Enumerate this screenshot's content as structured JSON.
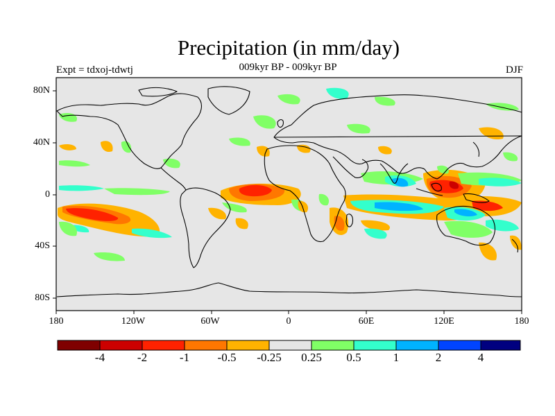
{
  "title": "Precipitation (in mm/day)",
  "subtitle": "009kyr BP - 009kyr BP",
  "left_label": "Expt = tdxoj-tdwtj",
  "right_label": "DJF",
  "y_ticks": [
    "80N",
    "40N",
    "0",
    "40S",
    "80S"
  ],
  "x_ticks": [
    "180",
    "120W",
    "60W",
    "0",
    "60E",
    "120E",
    "180"
  ],
  "colorbar": {
    "colors": [
      "#7f0000",
      "#cc0000",
      "#ff2200",
      "#ff7700",
      "#ffb300",
      "#e6e6e6",
      "#80ff66",
      "#33ffcc",
      "#00b3ff",
      "#0044ff",
      "#000080"
    ],
    "labels": [
      "-4",
      "-2",
      "-1",
      "-0.5",
      "-0.25",
      "0.25",
      "0.5",
      "1",
      "2",
      "4"
    ]
  },
  "colors": {
    "ocean_background": "#e6e6e6",
    "coastline": "#000000"
  }
}
